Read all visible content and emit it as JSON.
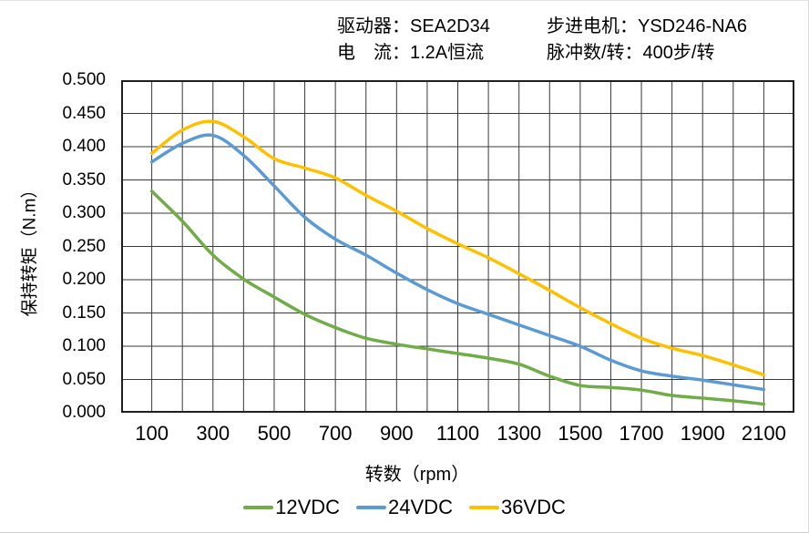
{
  "header": {
    "driver": "驱动器：SEA2D34",
    "current": "电　流：1.2A恒流",
    "motor": "步进电机：YSD246-NA6",
    "pulses": "脉冲数/转：400步/转"
  },
  "chart_data": {
    "type": "line",
    "title": "",
    "xlabel": "转数（rpm）",
    "ylabel": "保持转矩（N.m）",
    "xlim": [
      0,
      2200
    ],
    "ylim": [
      0,
      0.5
    ],
    "x_grid_step": 100,
    "y_grid_step": 0.05,
    "grid": true,
    "legend_position": "bottom",
    "x_tick_labels": [
      "100",
      "300",
      "500",
      "700",
      "900",
      "1100",
      "1300",
      "1500",
      "1700",
      "1900",
      "2100"
    ],
    "x_tick_values": [
      100,
      300,
      500,
      700,
      900,
      1100,
      1300,
      1500,
      1700,
      1900,
      2100
    ],
    "y_tick_labels": [
      "0.500",
      "0.450",
      "0.400",
      "0.350",
      "0.300",
      "0.250",
      "0.200",
      "0.150",
      "0.100",
      "0.050",
      "0.000"
    ],
    "y_tick_values": [
      0.5,
      0.45,
      0.4,
      0.35,
      0.3,
      0.25,
      0.2,
      0.15,
      0.1,
      0.05,
      0
    ],
    "x": [
      100,
      200,
      300,
      400,
      500,
      600,
      700,
      800,
      900,
      1000,
      1100,
      1200,
      1300,
      1400,
      1500,
      1600,
      1700,
      1800,
      1900,
      2000,
      2100
    ],
    "series": [
      {
        "name": "12VDC",
        "color": "#70AD47",
        "values": [
          0.333,
          0.288,
          0.237,
          0.201,
          0.174,
          0.148,
          0.128,
          0.112,
          0.103,
          0.096,
          0.089,
          0.082,
          0.073,
          0.055,
          0.041,
          0.038,
          0.034,
          0.026,
          0.022,
          0.018,
          0.013
        ]
      },
      {
        "name": "24VDC",
        "color": "#5B9BD5",
        "values": [
          0.377,
          0.405,
          0.417,
          0.387,
          0.341,
          0.294,
          0.261,
          0.237,
          0.21,
          0.185,
          0.164,
          0.148,
          0.132,
          0.116,
          0.1,
          0.079,
          0.063,
          0.055,
          0.049,
          0.042,
          0.035
        ]
      },
      {
        "name": "36VDC",
        "color": "#FFC000",
        "values": [
          0.39,
          0.425,
          0.438,
          0.415,
          0.382,
          0.368,
          0.353,
          0.327,
          0.303,
          0.277,
          0.254,
          0.233,
          0.209,
          0.184,
          0.158,
          0.134,
          0.112,
          0.097,
          0.086,
          0.072,
          0.057
        ]
      }
    ]
  },
  "layout_colors": {
    "grid": "#3a3a3a",
    "border": "#1f1f1f"
  }
}
